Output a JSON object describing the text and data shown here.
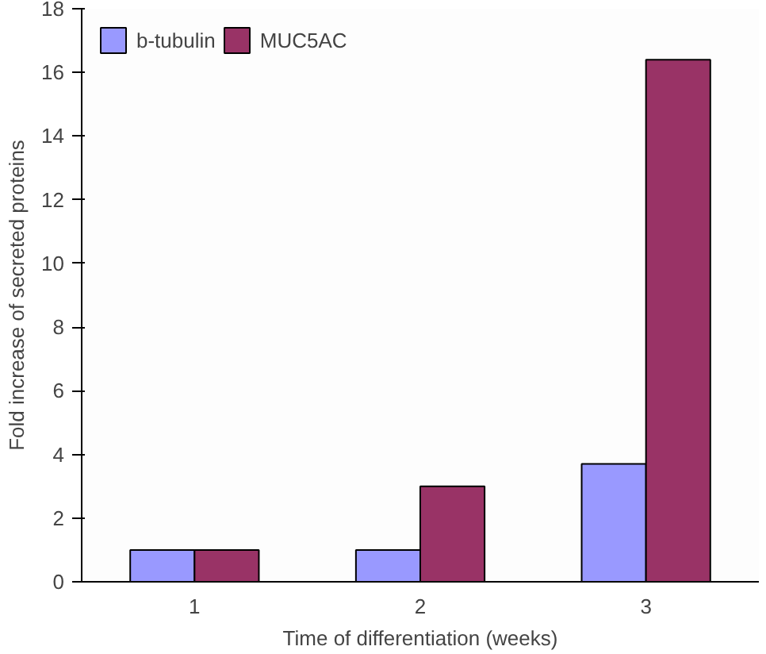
{
  "chart_data": {
    "type": "bar",
    "xlabel": "Time of differentiation (weeks)",
    "ylabel": "Fold increase of secreted proteins",
    "categories": [
      "1",
      "2",
      "3"
    ],
    "series": [
      {
        "name": "b-tubulin",
        "color": "#9999ff",
        "values": [
          1.0,
          1.0,
          3.7
        ]
      },
      {
        "name": "MUC5AC",
        "color": "#993366",
        "values": [
          1.0,
          3.0,
          16.4
        ]
      }
    ],
    "ylim": [
      0,
      18
    ],
    "yticks": [
      0,
      2,
      4,
      6,
      8,
      10,
      12,
      14,
      16,
      18
    ],
    "grid": false,
    "legend": "top left"
  }
}
